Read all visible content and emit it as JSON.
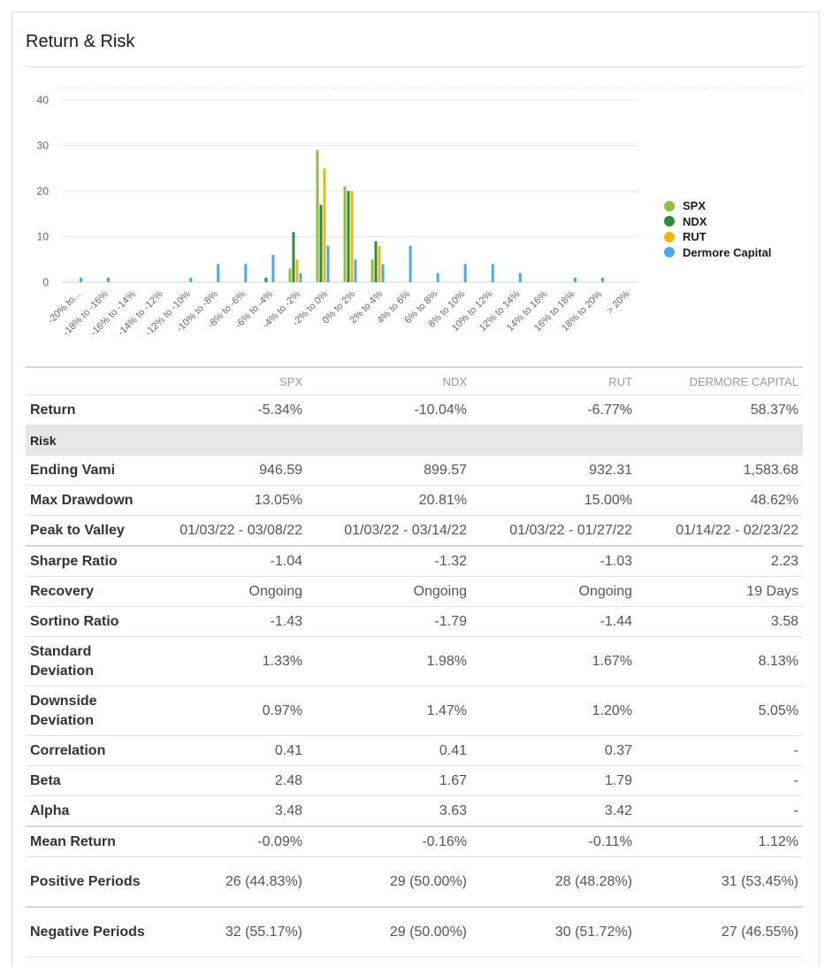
{
  "panel": {
    "title": "Return & Risk"
  },
  "chart_data": {
    "type": "bar",
    "categories": [
      "-20% to...",
      "-18% to -16%",
      "-16% to -14%",
      "-14% to -12%",
      "-12% to -10%",
      "-10% to -8%",
      "-8% to -6%",
      "-6% to -4%",
      "-4% to -2%",
      "-2% to 0%",
      "0% to 2%",
      "2% to 4%",
      "4% to 6%",
      "6% to 8%",
      "8% to 10%",
      "10% to 12%",
      "12% to 14%",
      "14% to 16%",
      "16% to 18%",
      "18% to 20%",
      "> 20%"
    ],
    "series": [
      {
        "name": "SPX",
        "color": "#8fbf3f",
        "values": [
          0,
          0,
          0,
          0,
          0,
          0,
          0,
          0,
          3,
          29,
          21,
          5,
          0,
          0,
          0,
          0,
          0,
          0,
          0,
          0,
          0
        ]
      },
      {
        "name": "NDX",
        "color": "#2e8b3e",
        "values": [
          0,
          0,
          0,
          0,
          0,
          0,
          0,
          1,
          11,
          17,
          20,
          9,
          0,
          0,
          0,
          0,
          0,
          0,
          0,
          0,
          0
        ]
      },
      {
        "name": "RUT",
        "color": "#f2b705",
        "values": [
          0,
          0,
          0,
          0,
          0,
          0,
          0,
          0,
          5,
          25,
          20,
          8,
          0,
          0,
          0,
          0,
          0,
          0,
          0,
          0,
          0
        ]
      },
      {
        "name": "Dermore Capital",
        "color": "#4aa8f0",
        "values": [
          1,
          1,
          0,
          0,
          1,
          4,
          4,
          6,
          2,
          8,
          5,
          4,
          8,
          2,
          4,
          4,
          2,
          0,
          1,
          1,
          0
        ]
      }
    ],
    "ylim": [
      0,
      40
    ],
    "yticks": [
      "0",
      "10",
      "20",
      "30",
      "40"
    ],
    "yticks_values": [
      0,
      10,
      20,
      30,
      40
    ],
    "legend": "right",
    "title": "",
    "xlabel": "",
    "ylabel": ""
  },
  "table": {
    "headers": [
      "",
      "SPX",
      "NDX",
      "RUT",
      "DERMORE CAPITAL"
    ],
    "return_row": {
      "label": "Return",
      "cells": [
        "-5.34%",
        "-10.04%",
        "-6.77%",
        "58.37%"
      ]
    },
    "section_label": "Risk",
    "rows": [
      {
        "label": "Ending Vami",
        "cells": [
          "946.59",
          "899.57",
          "932.31",
          "1,583.68"
        ],
        "tall": false,
        "sep": false
      },
      {
        "label": "Max Drawdown",
        "cells": [
          "13.05%",
          "20.81%",
          "15.00%",
          "48.62%"
        ],
        "tall": false,
        "sep": false
      },
      {
        "label": "Peak to Valley",
        "cells": [
          "01/03/22 - 03/08/22",
          "01/03/22 - 03/14/22",
          "01/03/22 - 01/27/22",
          "01/14/22 - 02/23/22"
        ],
        "tall": false,
        "sep": true
      },
      {
        "label": "Sharpe Ratio",
        "cells": [
          "-1.04",
          "-1.32",
          "-1.03",
          "2.23"
        ],
        "tall": false,
        "sep": false
      },
      {
        "label": "Recovery",
        "cells": [
          "Ongoing",
          "Ongoing",
          "Ongoing",
          "19 Days"
        ],
        "tall": false,
        "sep": false
      },
      {
        "label": "Sortino Ratio",
        "cells": [
          "-1.43",
          "-1.79",
          "-1.44",
          "3.58"
        ],
        "tall": false,
        "sep": false
      },
      {
        "label": "Standard Deviation",
        "cells": [
          "1.33%",
          "1.98%",
          "1.67%",
          "8.13%"
        ],
        "tall": true,
        "sep": false
      },
      {
        "label": "Downside Deviation",
        "cells": [
          "0.97%",
          "1.47%",
          "1.20%",
          "5.05%"
        ],
        "tall": true,
        "sep": false
      },
      {
        "label": "Correlation",
        "cells": [
          "0.41",
          "0.41",
          "0.37",
          "-"
        ],
        "tall": false,
        "sep": false
      },
      {
        "label": "Beta",
        "cells": [
          "2.48",
          "1.67",
          "1.79",
          "-"
        ],
        "tall": false,
        "sep": false
      },
      {
        "label": "Alpha",
        "cells": [
          "3.48",
          "3.63",
          "3.42",
          "-"
        ],
        "tall": false,
        "sep": true
      },
      {
        "label": "Mean Return",
        "cells": [
          "-0.09%",
          "-0.16%",
          "-0.11%",
          "1.12%"
        ],
        "tall": false,
        "sep": false
      },
      {
        "label": "Positive Periods",
        "cells": [
          "26 (44.83%)",
          "29 (50.00%)",
          "28 (48.28%)",
          "31 (53.45%)"
        ],
        "tall": true,
        "sep": true
      },
      {
        "label": "Negative Periods",
        "cells": [
          "32 (55.17%)",
          "29 (50.00%)",
          "30 (51.72%)",
          "27 (46.55%)"
        ],
        "tall": true,
        "sep": false
      }
    ]
  }
}
